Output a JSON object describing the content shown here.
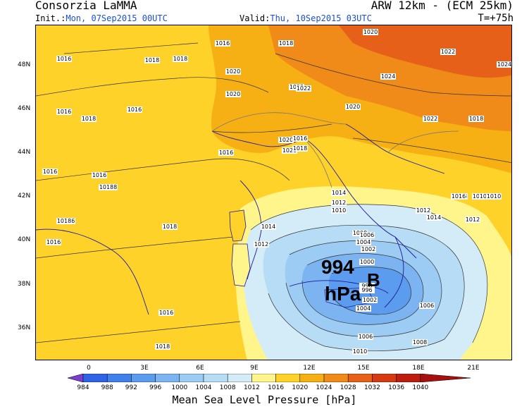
{
  "header": {
    "source": "Consorzia LaMMA",
    "model": "ARW 12km - (ECM 25km)",
    "init_label": "Init.:",
    "init_value": "Mon, 07Sep2015 00UTC",
    "valid_label": "Valid:",
    "valid_value": "Thu, 10Sep2015 03UTC",
    "lead_time": "T=+75h"
  },
  "axes": {
    "latitudes": [
      "48N",
      "46N",
      "44N",
      "42N",
      "40N",
      "38N",
      "36N"
    ],
    "longitudes": [
      "0",
      "3E",
      "6E",
      "9E",
      "12E",
      "15E",
      "18E",
      "21E"
    ]
  },
  "low_center": {
    "value": "994",
    "unit": "hPa",
    "marker": "B"
  },
  "isobar_labels": [
    "1016",
    "1018",
    "1020",
    "1022",
    "1024",
    "1016",
    "1018",
    "1020",
    "1022",
    "1024",
    "1016",
    "1018",
    "1016",
    "1018",
    "1020",
    "1016",
    "1018",
    "1022",
    "1020",
    "1022",
    "1018",
    "1020",
    "1016",
    "1018",
    "1016",
    "1018",
    "1020",
    "1016",
    "1014",
    "1012",
    "1010",
    "1018",
    "1016",
    "1018",
    "1014",
    "1012",
    "1008",
    "1006",
    "1004",
    "1002",
    "1000",
    "998",
    "996",
    "1002",
    "1004",
    "1006",
    "1008",
    "1010",
    "1012",
    "1014",
    "1016",
    "1018",
    "1006",
    "1008",
    "1010",
    "1012",
    "1016",
    "1018",
    "1016",
    "1018"
  ],
  "colorbar": {
    "title": "Mean Sea Level Pressure [hPa]",
    "levels": [
      "984",
      "988",
      "992",
      "996",
      "1000",
      "1004",
      "1008",
      "1012",
      "1016",
      "1020",
      "1024",
      "1028",
      "1032",
      "1036",
      "1040"
    ],
    "colors": [
      "#7b3fd0",
      "#2f63e6",
      "#3f80ea",
      "#5c9cee",
      "#7cb4f1",
      "#9ccbf3",
      "#b7dcf5",
      "#d4ecf8",
      "#fff58a",
      "#ffd22a",
      "#f7b014",
      "#f08a18",
      "#e6601a",
      "#d63a12",
      "#bd1e10",
      "#a80f0f"
    ]
  },
  "map_colors": {
    "yellow": "#ffd22a",
    "light_yellow": "#fff58a",
    "orange": "#f7b014",
    "dark_orange": "#f08a18",
    "red_orange": "#e6601a",
    "pale_blue": "#d4ecf8",
    "light_blue": "#b7dcf5",
    "blue1": "#9ccbf3",
    "blue2": "#7cb4f1",
    "blue3": "#5c9cee"
  }
}
